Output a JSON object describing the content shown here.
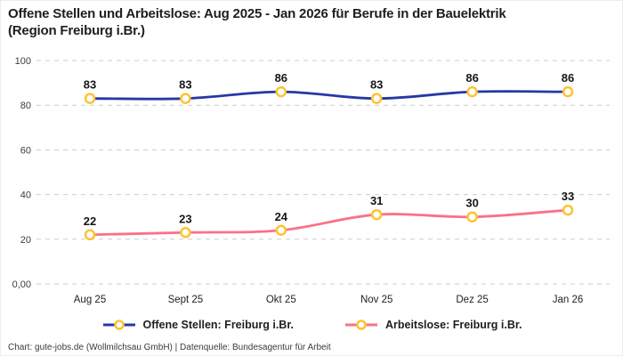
{
  "title": {
    "lines": [
      "Offene Stellen und Arbeitslose: Aug 2025 - Jan 2026 für Berufe in der Bauelektrik",
      "(Region Freiburg i.Br.)"
    ]
  },
  "footer": {
    "text": "Chart: gute-jobs.de (Wollmilchsau GmbH) | Datenquelle: Bundesagentur für Arbeit"
  },
  "chart_data": {
    "type": "line",
    "categories": [
      "Aug 25",
      "Sept 25",
      "Okt 25",
      "Nov 25",
      "Dez 25",
      "Jan 26"
    ],
    "series": [
      {
        "name": "Offene Stellen: Freiburg i.Br.",
        "color": "#2638a6",
        "values": [
          83,
          83,
          86,
          83,
          86,
          86
        ]
      },
      {
        "name": "Arbeitslose: Freiburg i.Br.",
        "color": "#fa7186",
        "values": [
          22,
          23,
          24,
          31,
          30,
          33
        ]
      }
    ],
    "ylim": [
      0,
      100
    ],
    "yticks": [
      {
        "value": 100,
        "label": "100"
      },
      {
        "value": 80,
        "label": "80"
      },
      {
        "value": 60,
        "label": "60"
      },
      {
        "value": 40,
        "label": "40"
      },
      {
        "value": 20,
        "label": "20"
      },
      {
        "value": 0,
        "label": "0,00"
      }
    ],
    "grid": "horizontal-dashed",
    "gridline_color": "#cccccc",
    "marker": {
      "ring_color": "#fcc434",
      "fill": "#ffffff"
    },
    "legend_position": "bottom",
    "data_labels": true
  }
}
